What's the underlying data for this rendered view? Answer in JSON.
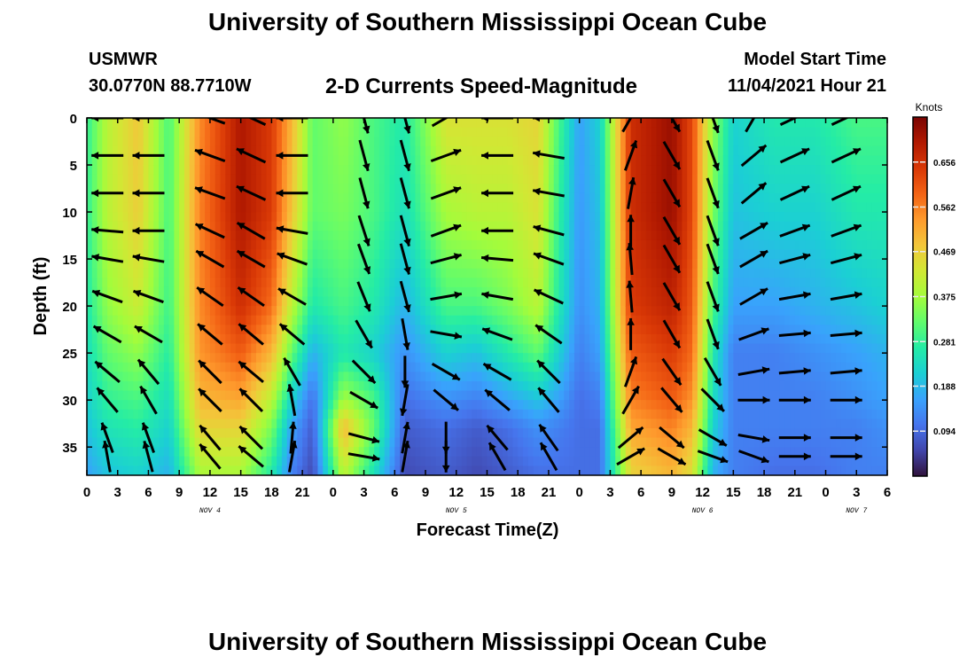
{
  "header": {
    "title": "University of Southern Mississippi Ocean Cube",
    "station": "USMWR",
    "coordinates": "30.0770N  88.7710W",
    "plot_title": "2-D Currents Speed-Magnitude",
    "model_start_label": "Model Start Time",
    "model_start_value": "11/04/2021 Hour 21"
  },
  "footer": {
    "title": "University of Southern Mississippi Ocean Cube"
  },
  "chart_data": {
    "type": "heatmap",
    "title": "2-D Currents Speed-Magnitude",
    "xlabel": "Forecast Time(Z)",
    "ylabel": "Depth (ft)",
    "x_tick_labels": [
      "0",
      "3",
      "6",
      "9",
      "12",
      "15",
      "18",
      "21",
      "0",
      "3",
      "6",
      "9",
      "12",
      "15",
      "18",
      "21",
      "0",
      "3",
      "6",
      "9",
      "12",
      "15",
      "18",
      "21",
      "0",
      "3",
      "6"
    ],
    "x_range_hours": [
      0,
      78
    ],
    "day_labels": [
      {
        "text": "NOV 4",
        "hour": 12
      },
      {
        "text": "NOV 5",
        "hour": 36
      },
      {
        "text": "NOV 6",
        "hour": 60
      },
      {
        "text": "NOV 7",
        "hour": 75
      }
    ],
    "y_ticks": [
      0,
      5,
      10,
      15,
      20,
      25,
      30,
      35
    ],
    "ylim": [
      0,
      38
    ],
    "y_inverted": true,
    "colorbar": {
      "label": "Knots",
      "ticks": [
        "0.656",
        "0.562",
        "0.469",
        "0.375",
        "0.281",
        "0.188",
        "0.094"
      ],
      "tick_values": [
        0.656,
        0.562,
        0.469,
        0.375,
        0.281,
        0.188,
        0.094
      ],
      "range": [
        0.0,
        0.75
      ],
      "colormap": [
        "#30123b",
        "#4145ab",
        "#4675ed",
        "#39a2fc",
        "#1bcfd4",
        "#24eca6",
        "#61fc6c",
        "#a4fc3b",
        "#d1e834",
        "#f3c63a",
        "#fe9b2d",
        "#f36315",
        "#d93806",
        "#b11901",
        "#7a0402"
      ]
    },
    "speed_field": {
      "unit": "knots",
      "depths_ft": [
        0,
        10,
        20,
        25,
        30,
        33,
        38
      ],
      "columns": [
        {
          "hour": 0,
          "speed": [
            0.28,
            0.28,
            0.26,
            0.24,
            0.22,
            0.2,
            0.16
          ]
        },
        {
          "hour": 2,
          "speed": [
            0.4,
            0.4,
            0.36,
            0.32,
            0.28,
            0.25,
            0.2
          ]
        },
        {
          "hour": 5,
          "speed": [
            0.48,
            0.47,
            0.42,
            0.36,
            0.3,
            0.27,
            0.22
          ]
        },
        {
          "hour": 8,
          "speed": [
            0.3,
            0.3,
            0.29,
            0.27,
            0.24,
            0.22,
            0.18
          ]
        },
        {
          "hour": 11,
          "speed": [
            0.55,
            0.56,
            0.55,
            0.54,
            0.5,
            0.46,
            0.38
          ]
        },
        {
          "hour": 15,
          "speed": [
            0.7,
            0.7,
            0.66,
            0.6,
            0.52,
            0.46,
            0.38
          ]
        },
        {
          "hour": 18,
          "speed": [
            0.64,
            0.64,
            0.58,
            0.5,
            0.4,
            0.34,
            0.26
          ]
        },
        {
          "hour": 20,
          "speed": [
            0.5,
            0.48,
            0.4,
            0.32,
            0.22,
            0.16,
            0.12
          ]
        },
        {
          "hour": 22,
          "speed": [
            0.32,
            0.32,
            0.26,
            0.18,
            0.1,
            0.08,
            0.06
          ]
        },
        {
          "hour": 25,
          "speed": [
            0.36,
            0.34,
            0.3,
            0.26,
            0.38,
            0.5,
            0.4
          ]
        },
        {
          "hour": 28,
          "speed": [
            0.3,
            0.3,
            0.26,
            0.22,
            0.3,
            0.32,
            0.24
          ]
        },
        {
          "hour": 31,
          "speed": [
            0.26,
            0.24,
            0.18,
            0.14,
            0.1,
            0.08,
            0.06
          ]
        },
        {
          "hour": 35,
          "speed": [
            0.44,
            0.38,
            0.3,
            0.22,
            0.14,
            0.1,
            0.08
          ]
        },
        {
          "hour": 38,
          "speed": [
            0.44,
            0.4,
            0.3,
            0.2,
            0.12,
            0.08,
            0.06
          ]
        },
        {
          "hour": 41,
          "speed": [
            0.44,
            0.4,
            0.34,
            0.26,
            0.16,
            0.1,
            0.08
          ]
        },
        {
          "hour": 44,
          "speed": [
            0.46,
            0.44,
            0.4,
            0.32,
            0.2,
            0.14,
            0.1
          ]
        },
        {
          "hour": 46,
          "speed": [
            0.3,
            0.28,
            0.26,
            0.22,
            0.16,
            0.12,
            0.1
          ]
        },
        {
          "hour": 48,
          "speed": [
            0.16,
            0.15,
            0.14,
            0.12,
            0.1,
            0.1,
            0.1
          ]
        },
        {
          "hour": 50,
          "speed": [
            0.22,
            0.2,
            0.18,
            0.16,
            0.12,
            0.1,
            0.1
          ]
        },
        {
          "hour": 53,
          "speed": [
            0.66,
            0.66,
            0.64,
            0.6,
            0.56,
            0.52,
            0.46
          ]
        },
        {
          "hour": 57,
          "speed": [
            0.72,
            0.72,
            0.68,
            0.64,
            0.6,
            0.56,
            0.5
          ]
        },
        {
          "hour": 59,
          "speed": [
            0.62,
            0.62,
            0.6,
            0.58,
            0.54,
            0.5,
            0.44
          ]
        },
        {
          "hour": 61,
          "speed": [
            0.36,
            0.34,
            0.3,
            0.26,
            0.24,
            0.22,
            0.18
          ]
        },
        {
          "hour": 63,
          "speed": [
            0.22,
            0.2,
            0.16,
            0.12,
            0.12,
            0.12,
            0.12
          ]
        },
        {
          "hour": 67,
          "speed": [
            0.26,
            0.22,
            0.16,
            0.12,
            0.12,
            0.12,
            0.1
          ]
        },
        {
          "hour": 71,
          "speed": [
            0.26,
            0.22,
            0.18,
            0.14,
            0.12,
            0.12,
            0.1
          ]
        },
        {
          "hour": 75,
          "speed": [
            0.3,
            0.26,
            0.2,
            0.16,
            0.14,
            0.12,
            0.12
          ]
        },
        {
          "hour": 78,
          "speed": [
            0.3,
            0.26,
            0.22,
            0.18,
            0.16,
            0.14,
            0.12
          ]
        }
      ]
    },
    "direction_field": {
      "unit": "degrees, direction the current flows toward, clockwise from east on the plot",
      "depths_ft": [
        0,
        4,
        8,
        12,
        15,
        19,
        23,
        27,
        30,
        34,
        36
      ],
      "columns": [
        {
          "hour": 2,
          "dir": [
            180,
            180,
            180,
            185,
            190,
            200,
            210,
            220,
            230,
            250,
            260
          ]
        },
        {
          "hour": 6,
          "dir": [
            180,
            180,
            180,
            180,
            190,
            200,
            210,
            230,
            240,
            250,
            255
          ]
        },
        {
          "hour": 12,
          "dir": [
            200,
            200,
            200,
            205,
            210,
            215,
            220,
            225,
            225,
            230,
            230
          ]
        },
        {
          "hour": 16,
          "dir": [
            205,
            205,
            205,
            210,
            210,
            215,
            220,
            220,
            225,
            225,
            220
          ]
        },
        {
          "hour": 20,
          "dir": [
            180,
            180,
            180,
            190,
            200,
            210,
            220,
            240,
            260,
            275,
            280
          ]
        },
        {
          "hour": 27,
          "dir": [
            75,
            75,
            75,
            72,
            70,
            68,
            60,
            45,
            30,
            15,
            10
          ]
        },
        {
          "hour": 31,
          "dir": [
            75,
            75,
            75,
            75,
            75,
            75,
            80,
            90,
            100,
            280,
            280
          ]
        },
        {
          "hour": 35,
          "dir": [
            330,
            340,
            340,
            340,
            345,
            350,
            10,
            30,
            40,
            90,
            90
          ]
        },
        {
          "hour": 40,
          "dir": [
            180,
            180,
            180,
            180,
            185,
            190,
            200,
            210,
            220,
            230,
            240
          ]
        },
        {
          "hour": 45,
          "dir": [
            180,
            190,
            190,
            195,
            200,
            205,
            215,
            225,
            230,
            235,
            240
          ]
        },
        {
          "hour": 53,
          "dir": [
            300,
            290,
            280,
            270,
            265,
            265,
            270,
            290,
            300,
            320,
            330
          ]
        },
        {
          "hour": 57,
          "dir": [
            60,
            60,
            60,
            60,
            60,
            60,
            60,
            55,
            50,
            40,
            30
          ]
        },
        {
          "hour": 61,
          "dir": [
            70,
            70,
            70,
            70,
            70,
            70,
            70,
            60,
            45,
            30,
            20
          ]
        },
        {
          "hour": 65,
          "dir": [
            300,
            320,
            320,
            330,
            330,
            330,
            340,
            350,
            0,
            10,
            20
          ]
        },
        {
          "hour": 69,
          "dir": [
            335,
            335,
            335,
            340,
            345,
            350,
            355,
            355,
            0,
            0,
            0
          ]
        },
        {
          "hour": 74,
          "dir": [
            335,
            335,
            335,
            340,
            345,
            350,
            355,
            355,
            0,
            0,
            0
          ]
        }
      ]
    },
    "legend": "colorbar-right",
    "grid": false
  }
}
